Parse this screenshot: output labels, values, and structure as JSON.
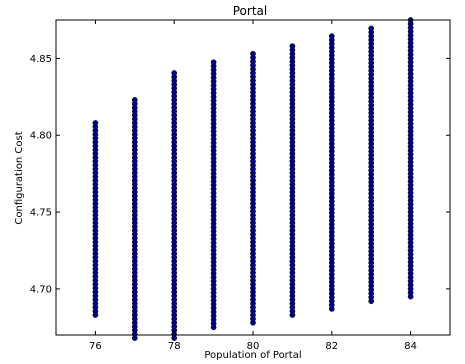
{
  "chart_data": {
    "type": "scatter",
    "title": "Portal",
    "xlabel": "Population of Portal",
    "ylabel": "Configuration Cost",
    "xlim": [
      75,
      85
    ],
    "ylim": [
      4.67,
      4.875
    ],
    "xticks": [
      76,
      78,
      80,
      82,
      84
    ],
    "xtick_labels": [
      "76",
      "78",
      "80",
      "82",
      "84"
    ],
    "yticks": [
      4.7,
      4.75,
      4.8,
      4.85
    ],
    "ytick_labels": [
      "4.70",
      "4.75",
      "4.80",
      "4.85"
    ],
    "grid": false,
    "legend": null,
    "marker_color": "#00008b",
    "marker_edge_color": "#000000",
    "columns": [
      {
        "x": 76,
        "y_min": 4.683,
        "y_max": 4.808
      },
      {
        "x": 77,
        "y_min": 4.668,
        "y_max": 4.825
      },
      {
        "x": 78,
        "y_min": 4.668,
        "y_max": 4.842
      },
      {
        "x": 79,
        "y_min": 4.675,
        "y_max": 4.848
      },
      {
        "x": 80,
        "y_min": 4.678,
        "y_max": 4.853
      },
      {
        "x": 81,
        "y_min": 4.683,
        "y_max": 4.859
      },
      {
        "x": 82,
        "y_min": 4.687,
        "y_max": 4.865
      },
      {
        "x": 83,
        "y_min": 4.692,
        "y_max": 4.87
      },
      {
        "x": 84,
        "y_min": 4.695,
        "y_max": 4.875
      }
    ]
  }
}
